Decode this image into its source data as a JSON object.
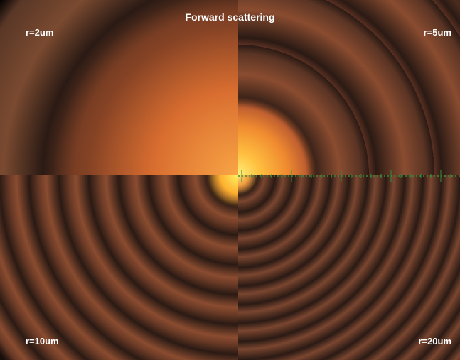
{
  "title": "Forward scattering",
  "panels": [
    {
      "label": "r=2um"
    },
    {
      "label": "r=5um"
    },
    {
      "label": "r=10um"
    },
    {
      "label": "r=20um"
    }
  ]
}
